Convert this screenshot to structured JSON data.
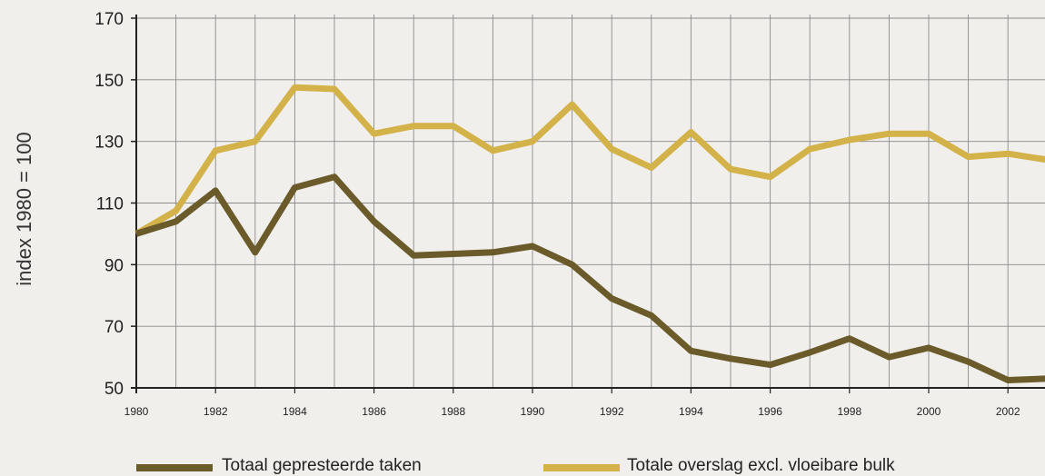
{
  "chart_data": {
    "type": "line",
    "ylabel": "index 1980 = 100",
    "xlabel": "",
    "ylim": [
      50,
      170
    ],
    "xlim": [
      1980,
      2003
    ],
    "yticks": [
      50,
      70,
      90,
      110,
      130,
      150,
      170
    ],
    "xticks": [
      1980,
      1982,
      1984,
      1986,
      1988,
      1990,
      1992,
      1994,
      1996,
      1998,
      2000,
      2002
    ],
    "grid": true,
    "legend_position": "bottom",
    "x": [
      1980,
      1981,
      1982,
      1983,
      1984,
      1985,
      1986,
      1987,
      1988,
      1989,
      1990,
      1991,
      1992,
      1993,
      1994,
      1995,
      1996,
      1997,
      1998,
      1999,
      2000,
      2001,
      2002,
      2003
    ],
    "series": [
      {
        "name": "Totaal gepresteerde taken",
        "color": "#6b5a2a",
        "values": [
          100,
          104,
          114,
          94,
          115,
          118.5,
          104,
          93,
          93.5,
          94,
          96,
          90,
          79,
          73.5,
          62,
          59.5,
          57.5,
          61.5,
          66,
          60,
          63,
          58.5,
          52.5,
          53
        ]
      },
      {
        "name": "Totale overslag excl. vloeibare bulk",
        "color": "#d4b24a",
        "values": [
          100,
          107.5,
          127,
          130,
          147.5,
          147,
          132.5,
          135,
          135,
          127,
          130,
          142,
          127.5,
          121.5,
          133,
          121,
          118.5,
          127.5,
          130.5,
          132.5,
          132.5,
          125,
          126,
          124
        ]
      }
    ]
  }
}
